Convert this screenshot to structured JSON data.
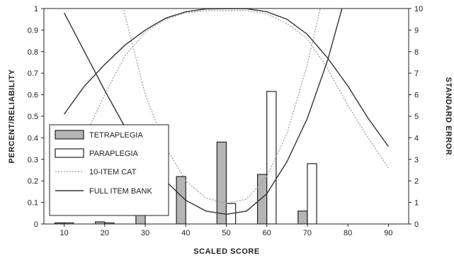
{
  "chart_data": {
    "type": "bar",
    "title": "",
    "xlabel": "SCALED SCORE",
    "ylabel": "PERCENT/RELIABILITY",
    "y2label": "STANDARD ERROR",
    "xlim": [
      5,
      95
    ],
    "ylim": [
      0,
      1
    ],
    "y2lim": [
      0,
      10
    ],
    "x_ticks": [
      10,
      20,
      30,
      40,
      50,
      60,
      70,
      80,
      90
    ],
    "y_ticks": [
      0,
      0.1,
      0.2,
      0.3,
      0.4,
      0.5,
      0.6,
      0.7,
      0.8,
      0.9,
      1
    ],
    "y2_ticks": [
      0,
      1,
      2,
      3,
      4,
      5,
      6,
      7,
      8,
      9,
      10
    ],
    "grid": false,
    "legend_position": "left-center",
    "categories": [
      10,
      20,
      30,
      40,
      50,
      60,
      70,
      80,
      90
    ],
    "bar_series": [
      {
        "name": "TETRAPLEGIA",
        "fill": "#b5b5b5",
        "values": [
          0.005,
          0.01,
          0.1,
          0.22,
          0.38,
          0.23,
          0.06,
          0,
          0
        ]
      },
      {
        "name": "PARAPLEGIA",
        "fill": "#ffffff",
        "values": [
          0.005,
          0.005,
          0,
          0,
          0.095,
          0.615,
          0.28,
          0,
          0
        ]
      }
    ],
    "line_series": [
      {
        "name": "10-ITEM CAT",
        "style": "dotted",
        "x": [
          10,
          15,
          20,
          25,
          30,
          35,
          40,
          45,
          50,
          55,
          60,
          65,
          70,
          75,
          80,
          85,
          90
        ],
        "reliability": [
          0.2,
          0.4,
          0.6,
          0.78,
          0.89,
          0.95,
          0.98,
          0.99,
          0.99,
          0.99,
          0.975,
          0.93,
          0.86,
          0.72,
          0.55,
          0.4,
          0.26
        ],
        "standard_error": [
          null,
          null,
          13.5,
          9.7,
          6.0,
          3.6,
          2.0,
          1.2,
          0.95,
          1.15,
          2.2,
          4.2,
          7.4,
          11.5,
          null,
          null,
          null
        ]
      },
      {
        "name": "FULL ITEM BANK",
        "style": "solid",
        "x": [
          10,
          15,
          20,
          25,
          30,
          35,
          40,
          45,
          50,
          55,
          60,
          65,
          70,
          75,
          80,
          85,
          90
        ],
        "reliability": [
          0.51,
          0.64,
          0.74,
          0.83,
          0.9,
          0.955,
          0.985,
          0.998,
          0.999,
          0.999,
          0.985,
          0.95,
          0.88,
          0.77,
          0.64,
          0.49,
          0.36
        ],
        "standard_error": [
          9.8,
          8.0,
          6.2,
          4.5,
          3.1,
          2.0,
          1.1,
          0.6,
          0.45,
          0.6,
          1.4,
          2.9,
          4.9,
          7.6,
          11.0,
          null,
          null
        ]
      }
    ]
  }
}
